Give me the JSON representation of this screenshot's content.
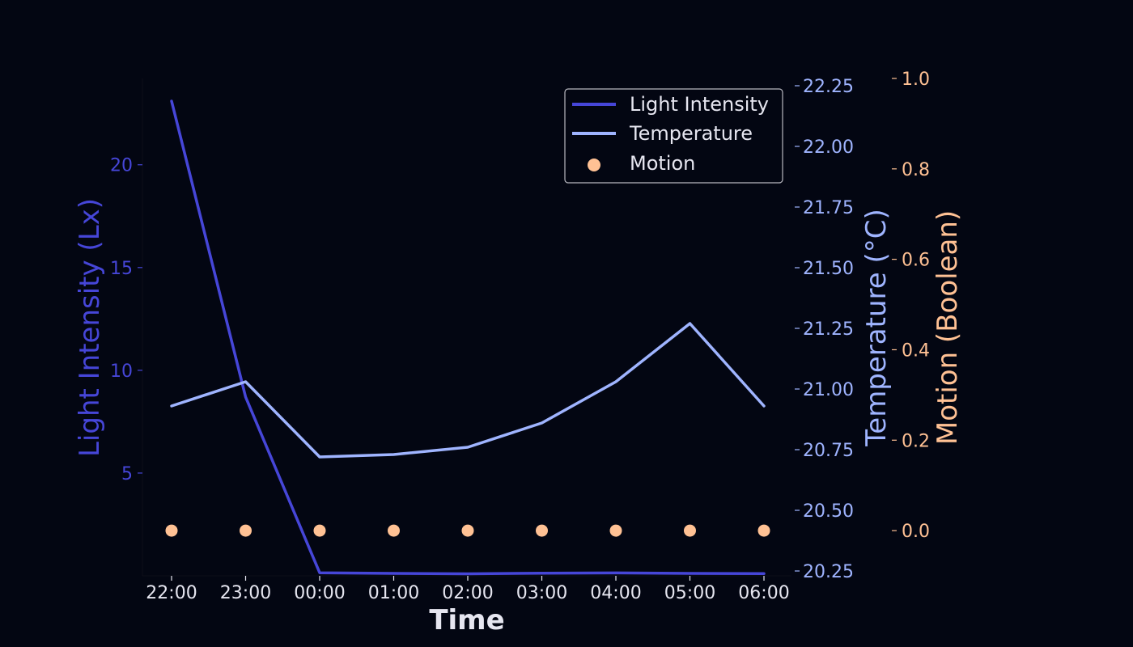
{
  "chart_data": {
    "type": "line",
    "title": "",
    "xlabel": "Time",
    "x": [
      "22:00",
      "23:00",
      "00:00",
      "01:00",
      "02:00",
      "03:00",
      "04:00",
      "05:00",
      "06:00"
    ],
    "axes": {
      "left": {
        "label": "Light Intensity (Lx)",
        "ylim": [
          0.0,
          24.2
        ],
        "ticks": [
          5,
          10,
          15,
          20
        ],
        "color": "#4646d8"
      },
      "right1": {
        "label": "Temperature (°C)",
        "ylim": [
          20.23,
          22.28
        ],
        "ticks": [
          "20.25",
          "20.50",
          "20.75",
          "21.00",
          "21.25",
          "21.50",
          "21.75",
          "22.00",
          "22.25"
        ],
        "color": "#9fb4ff"
      },
      "right2": {
        "label": "Motion (Boolean)",
        "ylim": [
          -0.1,
          1.0
        ],
        "ticks": [
          "0.0",
          "0.2",
          "0.4",
          "0.6",
          "0.8",
          "1.0"
        ],
        "color": "#ffc194"
      }
    },
    "series": [
      {
        "name": "Light Intensity",
        "type": "line",
        "axis": "left",
        "color": "#4646d8",
        "values": [
          23.1,
          8.7,
          0.15,
          0.12,
          0.1,
          0.13,
          0.14,
          0.12,
          0.11
        ]
      },
      {
        "name": "Temperature",
        "type": "line",
        "axis": "right1",
        "color": "#9fb4ff",
        "values": [
          20.93,
          21.03,
          20.72,
          20.73,
          20.76,
          20.86,
          21.03,
          21.27,
          20.93
        ]
      },
      {
        "name": "Motion",
        "type": "scatter",
        "axis": "right2",
        "color": "#ffc194",
        "values": [
          0,
          0,
          0,
          0,
          0,
          0,
          0,
          0,
          0
        ]
      }
    ],
    "legend": {
      "placement": "top-right"
    },
    "grid": false
  }
}
